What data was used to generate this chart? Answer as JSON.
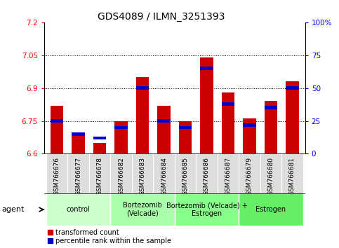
{
  "title": "GDS4089 / ILMN_3251393",
  "samples": [
    "GSM766676",
    "GSM766677",
    "GSM766678",
    "GSM766682",
    "GSM766683",
    "GSM766684",
    "GSM766685",
    "GSM766686",
    "GSM766687",
    "GSM766679",
    "GSM766680",
    "GSM766681"
  ],
  "transformed_count": [
    6.82,
    6.69,
    6.65,
    6.75,
    6.95,
    6.82,
    6.75,
    7.04,
    6.88,
    6.76,
    6.84,
    6.93
  ],
  "percentile_rank": [
    25,
    15,
    12,
    20,
    50,
    25,
    20,
    65,
    38,
    22,
    35,
    50
  ],
  "ylim_left": [
    6.6,
    7.2
  ],
  "ylim_right": [
    0,
    100
  ],
  "yticks_left": [
    6.6,
    6.75,
    6.9,
    7.05,
    7.2
  ],
  "yticks_right": [
    0,
    25,
    50,
    75,
    100
  ],
  "bar_color_red": "#cc0000",
  "bar_color_blue": "#0000cc",
  "agent_groups": [
    {
      "label": "control",
      "start": 0,
      "end": 3,
      "color": "#ccffcc"
    },
    {
      "label": "Bortezomib\n(Velcade)",
      "start": 3,
      "end": 6,
      "color": "#aaffaa"
    },
    {
      "label": "Bortezomib (Velcade) +\nEstrogen",
      "start": 6,
      "end": 9,
      "color": "#88ff88"
    },
    {
      "label": "Estrogen",
      "start": 9,
      "end": 12,
      "color": "#66ee66"
    }
  ],
  "legend_red_label": "transformed count",
  "legend_blue_label": "percentile rank within the sample",
  "ybase": 6.6,
  "bar_width": 0.6,
  "title_fontsize": 10,
  "tick_fontsize": 7.5,
  "sample_fontsize": 6.5,
  "agent_fontsize": 7,
  "legend_fontsize": 7
}
